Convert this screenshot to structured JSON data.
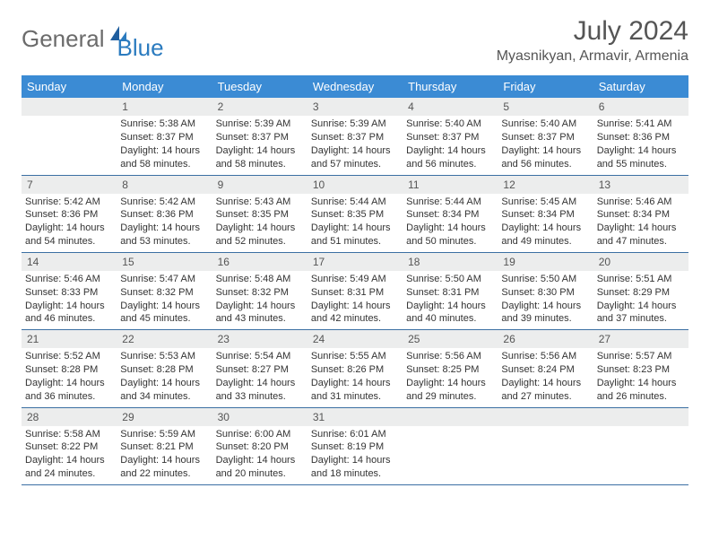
{
  "brand": {
    "text1": "General",
    "text2": "Blue",
    "color1": "#6b6b6b",
    "color2": "#2b7bbf"
  },
  "title": "July 2024",
  "location": "Myasnikyan, Armavir, Armenia",
  "header_bg": "#3b8bd4",
  "daynum_bg": "#eceded",
  "rule_color": "#3b6fa3",
  "weekdays": [
    "Sunday",
    "Monday",
    "Tuesday",
    "Wednesday",
    "Thursday",
    "Friday",
    "Saturday"
  ],
  "weeks": [
    [
      null,
      {
        "n": "1",
        "sr": "Sunrise: 5:38 AM",
        "ss": "Sunset: 8:37 PM",
        "dl": "Daylight: 14 hours and 58 minutes."
      },
      {
        "n": "2",
        "sr": "Sunrise: 5:39 AM",
        "ss": "Sunset: 8:37 PM",
        "dl": "Daylight: 14 hours and 58 minutes."
      },
      {
        "n": "3",
        "sr": "Sunrise: 5:39 AM",
        "ss": "Sunset: 8:37 PM",
        "dl": "Daylight: 14 hours and 57 minutes."
      },
      {
        "n": "4",
        "sr": "Sunrise: 5:40 AM",
        "ss": "Sunset: 8:37 PM",
        "dl": "Daylight: 14 hours and 56 minutes."
      },
      {
        "n": "5",
        "sr": "Sunrise: 5:40 AM",
        "ss": "Sunset: 8:37 PM",
        "dl": "Daylight: 14 hours and 56 minutes."
      },
      {
        "n": "6",
        "sr": "Sunrise: 5:41 AM",
        "ss": "Sunset: 8:36 PM",
        "dl": "Daylight: 14 hours and 55 minutes."
      }
    ],
    [
      {
        "n": "7",
        "sr": "Sunrise: 5:42 AM",
        "ss": "Sunset: 8:36 PM",
        "dl": "Daylight: 14 hours and 54 minutes."
      },
      {
        "n": "8",
        "sr": "Sunrise: 5:42 AM",
        "ss": "Sunset: 8:36 PM",
        "dl": "Daylight: 14 hours and 53 minutes."
      },
      {
        "n": "9",
        "sr": "Sunrise: 5:43 AM",
        "ss": "Sunset: 8:35 PM",
        "dl": "Daylight: 14 hours and 52 minutes."
      },
      {
        "n": "10",
        "sr": "Sunrise: 5:44 AM",
        "ss": "Sunset: 8:35 PM",
        "dl": "Daylight: 14 hours and 51 minutes."
      },
      {
        "n": "11",
        "sr": "Sunrise: 5:44 AM",
        "ss": "Sunset: 8:34 PM",
        "dl": "Daylight: 14 hours and 50 minutes."
      },
      {
        "n": "12",
        "sr": "Sunrise: 5:45 AM",
        "ss": "Sunset: 8:34 PM",
        "dl": "Daylight: 14 hours and 49 minutes."
      },
      {
        "n": "13",
        "sr": "Sunrise: 5:46 AM",
        "ss": "Sunset: 8:34 PM",
        "dl": "Daylight: 14 hours and 47 minutes."
      }
    ],
    [
      {
        "n": "14",
        "sr": "Sunrise: 5:46 AM",
        "ss": "Sunset: 8:33 PM",
        "dl": "Daylight: 14 hours and 46 minutes."
      },
      {
        "n": "15",
        "sr": "Sunrise: 5:47 AM",
        "ss": "Sunset: 8:32 PM",
        "dl": "Daylight: 14 hours and 45 minutes."
      },
      {
        "n": "16",
        "sr": "Sunrise: 5:48 AM",
        "ss": "Sunset: 8:32 PM",
        "dl": "Daylight: 14 hours and 43 minutes."
      },
      {
        "n": "17",
        "sr": "Sunrise: 5:49 AM",
        "ss": "Sunset: 8:31 PM",
        "dl": "Daylight: 14 hours and 42 minutes."
      },
      {
        "n": "18",
        "sr": "Sunrise: 5:50 AM",
        "ss": "Sunset: 8:31 PM",
        "dl": "Daylight: 14 hours and 40 minutes."
      },
      {
        "n": "19",
        "sr": "Sunrise: 5:50 AM",
        "ss": "Sunset: 8:30 PM",
        "dl": "Daylight: 14 hours and 39 minutes."
      },
      {
        "n": "20",
        "sr": "Sunrise: 5:51 AM",
        "ss": "Sunset: 8:29 PM",
        "dl": "Daylight: 14 hours and 37 minutes."
      }
    ],
    [
      {
        "n": "21",
        "sr": "Sunrise: 5:52 AM",
        "ss": "Sunset: 8:28 PM",
        "dl": "Daylight: 14 hours and 36 minutes."
      },
      {
        "n": "22",
        "sr": "Sunrise: 5:53 AM",
        "ss": "Sunset: 8:28 PM",
        "dl": "Daylight: 14 hours and 34 minutes."
      },
      {
        "n": "23",
        "sr": "Sunrise: 5:54 AM",
        "ss": "Sunset: 8:27 PM",
        "dl": "Daylight: 14 hours and 33 minutes."
      },
      {
        "n": "24",
        "sr": "Sunrise: 5:55 AM",
        "ss": "Sunset: 8:26 PM",
        "dl": "Daylight: 14 hours and 31 minutes."
      },
      {
        "n": "25",
        "sr": "Sunrise: 5:56 AM",
        "ss": "Sunset: 8:25 PM",
        "dl": "Daylight: 14 hours and 29 minutes."
      },
      {
        "n": "26",
        "sr": "Sunrise: 5:56 AM",
        "ss": "Sunset: 8:24 PM",
        "dl": "Daylight: 14 hours and 27 minutes."
      },
      {
        "n": "27",
        "sr": "Sunrise: 5:57 AM",
        "ss": "Sunset: 8:23 PM",
        "dl": "Daylight: 14 hours and 26 minutes."
      }
    ],
    [
      {
        "n": "28",
        "sr": "Sunrise: 5:58 AM",
        "ss": "Sunset: 8:22 PM",
        "dl": "Daylight: 14 hours and 24 minutes."
      },
      {
        "n": "29",
        "sr": "Sunrise: 5:59 AM",
        "ss": "Sunset: 8:21 PM",
        "dl": "Daylight: 14 hours and 22 minutes."
      },
      {
        "n": "30",
        "sr": "Sunrise: 6:00 AM",
        "ss": "Sunset: 8:20 PM",
        "dl": "Daylight: 14 hours and 20 minutes."
      },
      {
        "n": "31",
        "sr": "Sunrise: 6:01 AM",
        "ss": "Sunset: 8:19 PM",
        "dl": "Daylight: 14 hours and 18 minutes."
      },
      null,
      null,
      null
    ]
  ]
}
